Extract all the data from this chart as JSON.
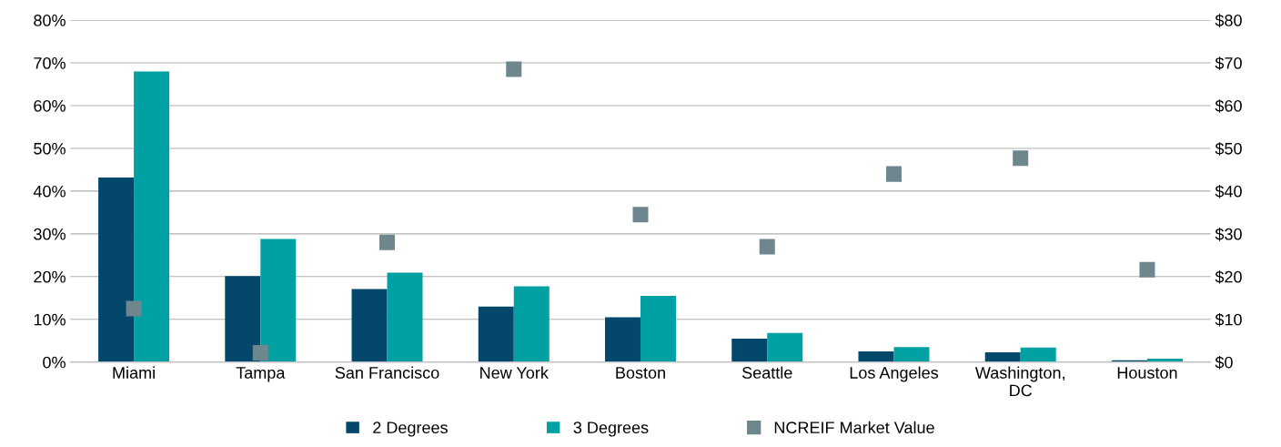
{
  "chart_data": {
    "type": "bar",
    "categories": [
      "Miami",
      "Tampa",
      "San Francisco",
      "New York",
      "Boston",
      "Seattle",
      "Los Angeles",
      "Washington,\nDC",
      "Houston"
    ],
    "series": [
      {
        "name": "2 Degrees",
        "color": "#03476b",
        "values": [
          43.2,
          20.1,
          17.1,
          13.0,
          10.5,
          5.5,
          2.5,
          2.3,
          0.4
        ]
      },
      {
        "name": "3 Degrees",
        "color": "#00a0a3",
        "values": [
          68.0,
          28.8,
          20.9,
          17.7,
          15.5,
          6.8,
          3.5,
          3.4,
          0.8
        ]
      },
      {
        "name": "NCREIF Market Value",
        "type": "scatter",
        "axis": "y2",
        "color": "#6e868e",
        "marker": "square",
        "x": [
          "Miami",
          "Tampa",
          "San Francisco",
          "New York",
          "Boston",
          "Seattle",
          "Los Angeles",
          "Washington,\nDC",
          "Houston"
        ],
        "values": [
          12.5,
          2.2,
          28.0,
          68.5,
          34.5,
          27.0,
          44.0,
          47.7,
          21.6
        ]
      }
    ],
    "ylim": [
      0,
      80
    ],
    "yticks": [
      {
        "value": 0,
        "label": "0%"
      },
      {
        "value": 10,
        "label": "10%"
      },
      {
        "value": 20,
        "label": "20%"
      },
      {
        "value": 30,
        "label": "30%"
      },
      {
        "value": 40,
        "label": "40%"
      },
      {
        "value": 50,
        "label": "50%"
      },
      {
        "value": 60,
        "label": "60%"
      },
      {
        "value": 70,
        "label": "70%"
      },
      {
        "value": 80,
        "label": "80%"
      }
    ],
    "y2lim": [
      0,
      80
    ],
    "y2ticks": [
      {
        "value": 0,
        "label": "$0"
      },
      {
        "value": 10,
        "label": "$10"
      },
      {
        "value": 20,
        "label": "$20"
      },
      {
        "value": 30,
        "label": "$30"
      },
      {
        "value": 40,
        "label": "$40"
      },
      {
        "value": 50,
        "label": "$50"
      },
      {
        "value": 60,
        "label": "$60"
      },
      {
        "value": 70,
        "label": "$70"
      },
      {
        "value": 80,
        "label": "$80"
      }
    ],
    "grid": "y",
    "legend": "bottom"
  }
}
